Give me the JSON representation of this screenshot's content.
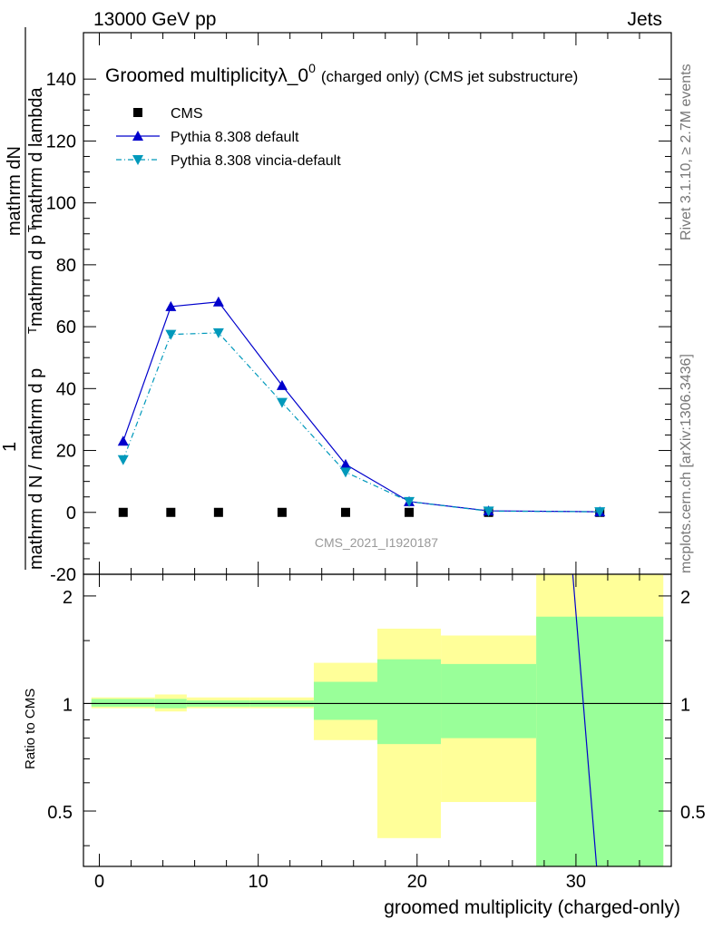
{
  "header": {
    "left": "13000 GeV pp",
    "right": "Jets"
  },
  "side_labels": {
    "rivet": "Rivet 3.1.10, ≥ 2.7M events",
    "mcplots": "mcplots.cern.ch [arXiv:1306.3436]"
  },
  "chart_data": [
    {
      "type": "line",
      "title": "Groomed multiplicityλ_0",
      "title_sup": "0",
      "title_suffix": "(charged only) (CMS jet substructure)",
      "watermark": "CMS_2021_I1920187",
      "ylabel_numerator": "mathrm dN",
      "ylabel_lines": [
        "1",
        "mathrm d N / mathrm d p",
        "T",
        "mathrm d p",
        "T",
        "mathrm d lambda"
      ],
      "xlim": [
        -1,
        36
      ],
      "ylim": [
        -20,
        155
      ],
      "yticks": [
        -20,
        0,
        20,
        40,
        60,
        80,
        100,
        120,
        140
      ],
      "legend_position": "top-left",
      "series": [
        {
          "name": "CMS",
          "marker": "square",
          "color": "#000000",
          "x": [
            1.5,
            4.5,
            7.5,
            11.5,
            15.5,
            19.5,
            24.5,
            31.5
          ],
          "y": [
            0,
            0,
            0,
            0,
            0,
            0,
            0,
            0
          ]
        },
        {
          "name": "Pythia 8.308 default",
          "marker": "triangle-up",
          "line": "solid",
          "color": "#0000cc",
          "x": [
            1.5,
            4.5,
            7.5,
            11.5,
            15.5,
            19.5,
            24.5,
            31.5
          ],
          "y": [
            23,
            66.5,
            68,
            41,
            15.5,
            3.5,
            0.5,
            0.2
          ]
        },
        {
          "name": "Pythia 8.308 vincia-default",
          "marker": "triangle-down",
          "line": "dash-dot",
          "color": "#0099bb",
          "x": [
            1.5,
            4.5,
            7.5,
            11.5,
            15.5,
            19.5,
            24.5,
            31.5
          ],
          "y": [
            17,
            57.5,
            58,
            35.5,
            13,
            3.5,
            0.4,
            0.2
          ]
        }
      ]
    },
    {
      "type": "area",
      "ylabel": "Ratio to CMS",
      "xlabel": "groomed multiplicity (charged-only)",
      "xlim": [
        -1,
        36
      ],
      "ylim": [
        0.35,
        2.3
      ],
      "yticks": [
        0.5,
        1,
        2
      ],
      "xticks": [
        0,
        10,
        20,
        30
      ],
      "reference_line": 1,
      "bands": [
        {
          "x0": -0.5,
          "x1": 3.5,
          "y_lo": 0.97,
          "y_hi": 1.04,
          "g_lo": 0.98,
          "g_hi": 1.03
        },
        {
          "x0": 3.5,
          "x1": 5.5,
          "y_lo": 0.95,
          "y_hi": 1.06,
          "g_lo": 0.97,
          "g_hi": 1.03
        },
        {
          "x0": 5.5,
          "x1": 9.5,
          "y_lo": 0.97,
          "y_hi": 1.04,
          "g_lo": 0.98,
          "g_hi": 1.02
        },
        {
          "x0": 9.5,
          "x1": 13.5,
          "y_lo": 0.97,
          "y_hi": 1.04,
          "g_lo": 0.98,
          "g_hi": 1.02
        },
        {
          "x0": 13.5,
          "x1": 17.5,
          "y_lo": 0.79,
          "y_hi": 1.3,
          "g_lo": 0.9,
          "g_hi": 1.15
        },
        {
          "x0": 17.5,
          "x1": 21.5,
          "y_lo": 0.42,
          "y_hi": 1.62,
          "g_lo": 0.77,
          "g_hi": 1.33
        },
        {
          "x0": 21.5,
          "x1": 27.5,
          "y_lo": 0.53,
          "y_hi": 1.55,
          "g_lo": 0.8,
          "g_hi": 1.29
        },
        {
          "x0": 27.5,
          "x1": 35.5,
          "y_lo": 0.35,
          "y_hi": 2.3,
          "g_lo": 0.35,
          "g_hi": 1.75
        }
      ],
      "ratio_line": {
        "color": "#0000cc",
        "x": [
          29.8,
          31.3
        ],
        "y": [
          2.3,
          0.35
        ]
      }
    }
  ]
}
